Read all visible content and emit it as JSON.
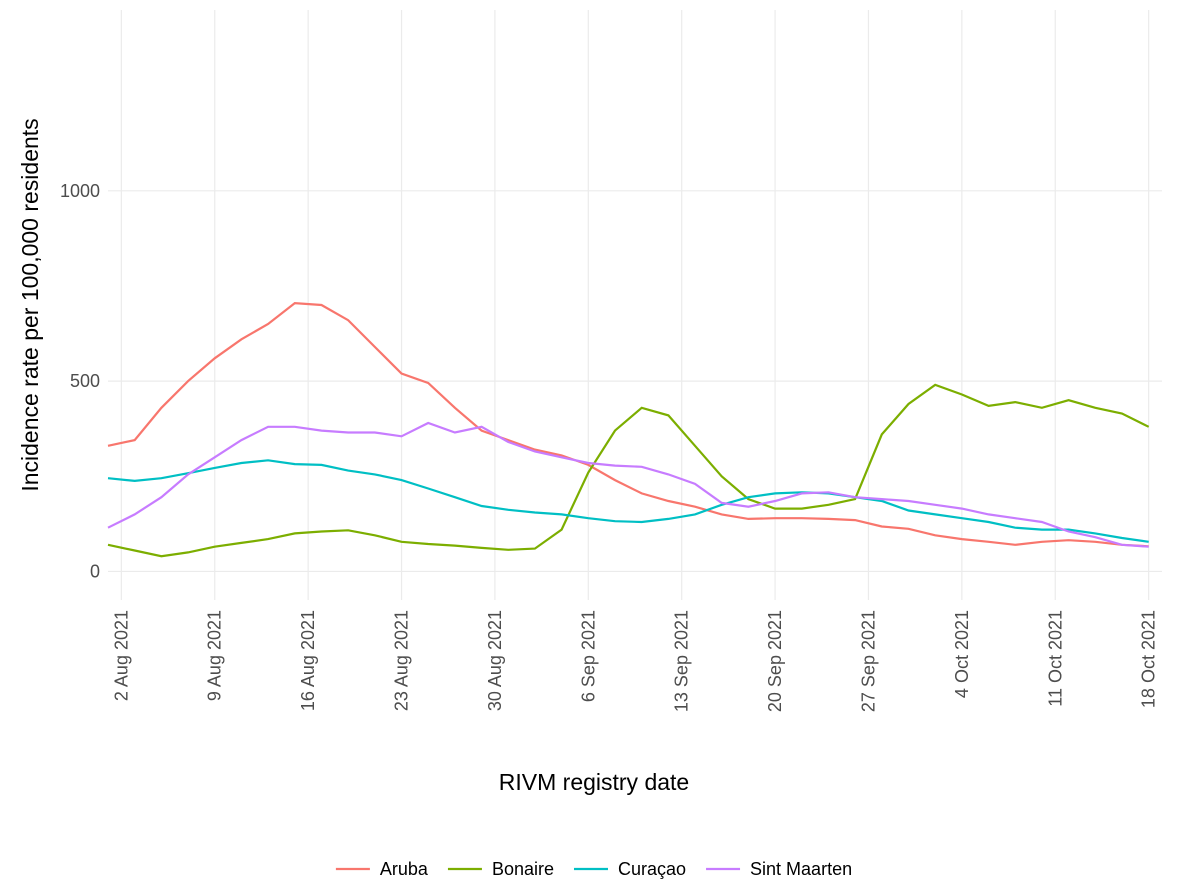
{
  "chart_data": {
    "type": "line",
    "x_label": "RIVM registry date",
    "y_label": "Incidence rate per 100,000 residents",
    "x": [
      "1 Aug 2021",
      "3 Aug 2021",
      "5 Aug 2021",
      "7 Aug 2021",
      "9 Aug 2021",
      "11 Aug 2021",
      "13 Aug 2021",
      "15 Aug 2021",
      "17 Aug 2021",
      "19 Aug 2021",
      "21 Aug 2021",
      "23 Aug 2021",
      "25 Aug 2021",
      "27 Aug 2021",
      "29 Aug 2021",
      "31 Aug 2021",
      "2 Sep 2021",
      "4 Sep 2021",
      "6 Sep 2021",
      "8 Sep 2021",
      "10 Sep 2021",
      "12 Sep 2021",
      "14 Sep 2021",
      "16 Sep 2021",
      "18 Sep 2021",
      "20 Sep 2021",
      "22 Sep 2021",
      "24 Sep 2021",
      "26 Sep 2021",
      "28 Sep 2021",
      "30 Sep 2021",
      "2 Oct 2021",
      "4 Oct 2021",
      "6 Oct 2021",
      "8 Oct 2021",
      "10 Oct 2021",
      "12 Oct 2021",
      "14 Oct 2021",
      "16 Oct 2021",
      "18 Oct 2021"
    ],
    "series": [
      {
        "name": "Aruba",
        "color": "#F8766D",
        "values": [
          330,
          345,
          430,
          500,
          560,
          610,
          650,
          705,
          700,
          660,
          590,
          520,
          495,
          430,
          370,
          345,
          320,
          305,
          280,
          240,
          205,
          185,
          170,
          150,
          138,
          140,
          140,
          138,
          135,
          118,
          112,
          95,
          85,
          78,
          70,
          78,
          82,
          78,
          70,
          66
        ]
      },
      {
        "name": "Bonaire",
        "color": "#7CAE00",
        "values": [
          70,
          55,
          40,
          50,
          65,
          75,
          85,
          100,
          105,
          108,
          95,
          78,
          72,
          68,
          62,
          57,
          60,
          110,
          260,
          370,
          430,
          410,
          330,
          250,
          190,
          165,
          165,
          175,
          190,
          360,
          440,
          490,
          465,
          435,
          445,
          430,
          450,
          430,
          415,
          380
        ]
      },
      {
        "name": "Curaçao",
        "color": "#00BFC4",
        "values": [
          245,
          238,
          245,
          258,
          272,
          285,
          292,
          282,
          280,
          265,
          255,
          240,
          218,
          195,
          172,
          162,
          155,
          150,
          140,
          132,
          130,
          138,
          150,
          175,
          195,
          205,
          208,
          205,
          195,
          185,
          160,
          150,
          140,
          130,
          115,
          110,
          110,
          100,
          88,
          78
        ]
      },
      {
        "name": "Sint Maarten",
        "color": "#C77CFF",
        "values": [
          115,
          150,
          195,
          255,
          300,
          345,
          380,
          380,
          370,
          365,
          365,
          355,
          390,
          365,
          380,
          340,
          315,
          300,
          285,
          278,
          275,
          255,
          230,
          180,
          170,
          185,
          205,
          208,
          195,
          190,
          185,
          175,
          165,
          150,
          140,
          130,
          105,
          90,
          70,
          65
        ]
      }
    ],
    "xlim": [
      "1 Aug 2021",
      "19 Oct 2021"
    ],
    "xticks": [
      "2 Aug 2021",
      "9 Aug 2021",
      "16 Aug 2021",
      "23 Aug 2021",
      "30 Aug 2021",
      "6 Sep 2021",
      "13 Sep 2021",
      "20 Sep 2021",
      "27 Sep 2021",
      "4 Oct 2021",
      "11 Oct 2021",
      "18 Oct 2021"
    ],
    "ylim": [
      -75,
      1475
    ],
    "yticks": [
      0,
      500,
      1000
    ],
    "grid": true,
    "legend": "bottom"
  }
}
